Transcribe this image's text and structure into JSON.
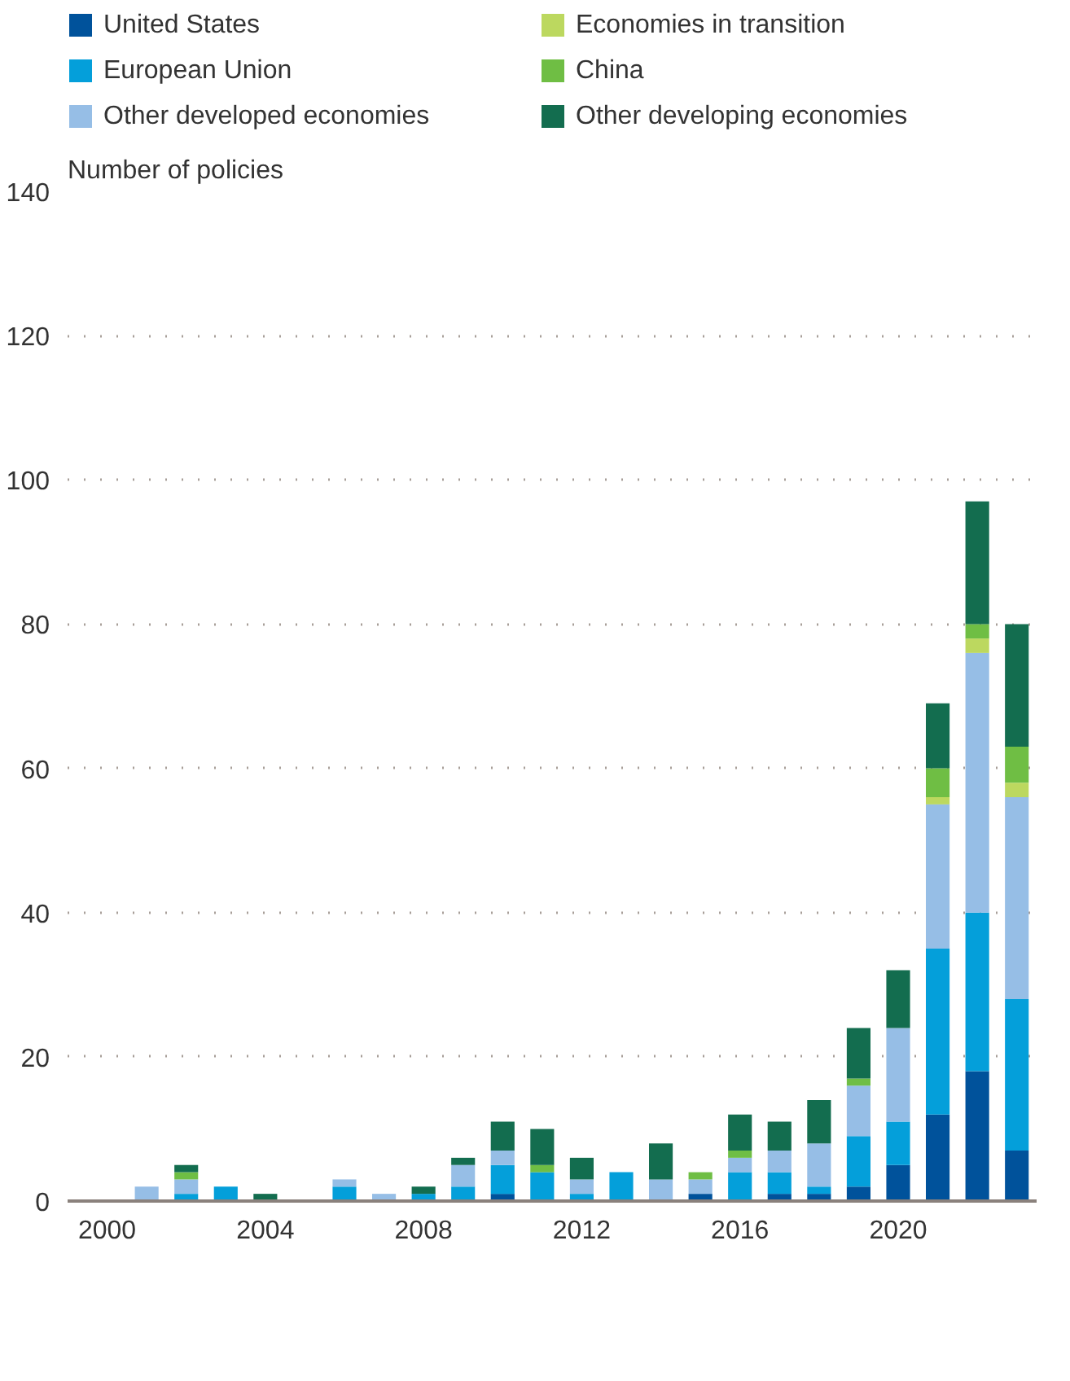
{
  "chart_data": {
    "type": "bar",
    "stacked": true,
    "ylabel": "Number of policies",
    "x": [
      2001,
      2002,
      2003,
      2004,
      2005,
      2006,
      2007,
      2008,
      2009,
      2010,
      2011,
      2012,
      2013,
      2014,
      2015,
      2016,
      2017,
      2018,
      2019,
      2020,
      2021,
      2022,
      2023
    ],
    "series": [
      {
        "name": "United States",
        "color": "#00529b",
        "values": [
          0,
          0,
          0,
          0,
          0,
          0,
          0,
          0,
          0,
          1,
          0,
          0,
          0,
          0,
          1,
          0,
          1,
          1,
          2,
          5,
          12,
          18,
          7
        ]
      },
      {
        "name": "European Union",
        "color": "#049fda",
        "values": [
          0,
          1,
          2,
          0,
          0,
          2,
          0,
          1,
          2,
          4,
          4,
          1,
          4,
          0,
          0,
          4,
          3,
          1,
          7,
          6,
          23,
          22,
          21
        ]
      },
      {
        "name": "Other developed economies",
        "color": "#96bee6",
        "values": [
          2,
          2,
          0,
          0,
          0,
          1,
          1,
          0,
          3,
          2,
          0,
          2,
          0,
          3,
          2,
          2,
          3,
          6,
          7,
          13,
          20,
          36,
          28
        ]
      },
      {
        "name": "Economies in transition",
        "color": "#bcd85f",
        "values": [
          0,
          0,
          0,
          0,
          0,
          0,
          0,
          0,
          0,
          0,
          0,
          0,
          0,
          0,
          0,
          0,
          0,
          0,
          0,
          0,
          1,
          2,
          2
        ]
      },
      {
        "name": "China",
        "color": "#6fbe44",
        "values": [
          0,
          1,
          0,
          0,
          0,
          0,
          0,
          0,
          0,
          0,
          1,
          0,
          0,
          0,
          1,
          1,
          0,
          0,
          1,
          0,
          4,
          2,
          5
        ]
      },
      {
        "name": "Other developing economies",
        "color": "#136d4f",
        "values": [
          0,
          1,
          0,
          1,
          0,
          0,
          0,
          1,
          1,
          4,
          5,
          3,
          0,
          5,
          0,
          5,
          4,
          6,
          7,
          8,
          9,
          17,
          17
        ]
      }
    ],
    "xlim": [
      1999,
      2023.5
    ],
    "xticks": [
      2000,
      2004,
      2008,
      2012,
      2016,
      2020
    ],
    "ylim": [
      0,
      140
    ],
    "yticks": [
      0,
      20,
      40,
      60,
      80,
      100,
      120,
      140
    ],
    "grid": "y",
    "legend": "top"
  }
}
